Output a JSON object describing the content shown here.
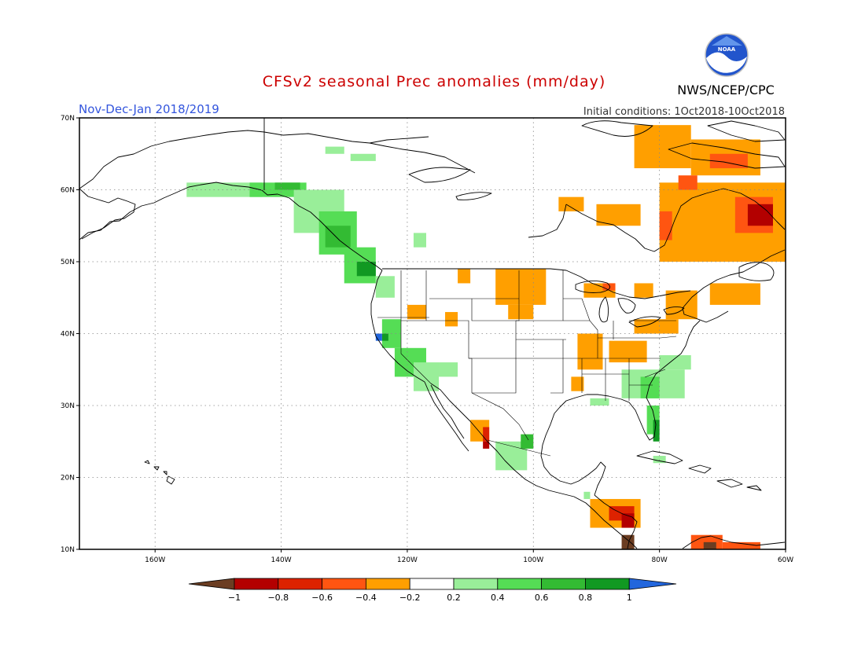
{
  "header": {
    "title": "CFSv2 seasonal Prec anomalies (mm/day)",
    "season": "Nov-Dec-Jan 2018/2019",
    "initial_conditions": "Initial conditions: 1Oct2018-10Oct2018",
    "agency": "NWS/NCEP/CPC",
    "logo_text": "NOAA"
  },
  "colors": {
    "title": "#cc0000",
    "season": "#3355dd",
    "neg_1": "#6b3d22",
    "neg_08": "#b30000",
    "neg_06": "#dd2200",
    "neg_04": "#ff5511",
    "neg_02": "#ff9f00",
    "pos_02": "#99ee99",
    "pos_04": "#55dd55",
    "pos_06": "#33bb33",
    "pos_08": "#119922",
    "pos_1": "#2266dd"
  },
  "map": {
    "lon_range": [
      -172,
      -60
    ],
    "lat_range": [
      10,
      70
    ],
    "lon_ticks": [
      {
        "value": -160,
        "label": "160W"
      },
      {
        "value": -140,
        "label": "140W"
      },
      {
        "value": -120,
        "label": "120W"
      },
      {
        "value": -100,
        "label": "100W"
      },
      {
        "value": -80,
        "label": "80W"
      },
      {
        "value": -60,
        "label": "60W"
      }
    ],
    "lat_ticks": [
      {
        "value": 10,
        "label": "10N"
      },
      {
        "value": 20,
        "label": "20N"
      },
      {
        "value": 30,
        "label": "30N"
      },
      {
        "value": 40,
        "label": "40N"
      },
      {
        "value": 50,
        "label": "50N"
      },
      {
        "value": 60,
        "label": "60N"
      },
      {
        "value": 70,
        "label": "70N"
      }
    ],
    "grid": true,
    "cell_deg": 1,
    "anomaly_patches": [
      {
        "lon": [
          -84,
          -75
        ],
        "lat": [
          63,
          69
        ],
        "class": "neg_02"
      },
      {
        "lon": [
          -75,
          -64
        ],
        "lat": [
          62,
          67
        ],
        "class": "neg_02"
      },
      {
        "lon": [
          -72,
          -66
        ],
        "lat": [
          63,
          65
        ],
        "class": "neg_04"
      },
      {
        "lon": [
          -80,
          -60
        ],
        "lat": [
          50,
          61
        ],
        "class": "neg_02"
      },
      {
        "lon": [
          -68,
          -62
        ],
        "lat": [
          54,
          59
        ],
        "class": "neg_04"
      },
      {
        "lon": [
          -66,
          -62
        ],
        "lat": [
          55,
          58
        ],
        "class": "neg_08"
      },
      {
        "lon": [
          -77,
          -74
        ],
        "lat": [
          60,
          62
        ],
        "class": "neg_04"
      },
      {
        "lon": [
          -80,
          -78
        ],
        "lat": [
          53,
          57
        ],
        "class": "neg_04"
      },
      {
        "lon": [
          -90,
          -83
        ],
        "lat": [
          55,
          58
        ],
        "class": "neg_02"
      },
      {
        "lon": [
          -96,
          -92
        ],
        "lat": [
          57,
          59
        ],
        "class": "neg_02"
      },
      {
        "lon": [
          -106,
          -98
        ],
        "lat": [
          44,
          49
        ],
        "class": "neg_02"
      },
      {
        "lon": [
          -104,
          -100
        ],
        "lat": [
          42,
          44
        ],
        "class": "neg_02"
      },
      {
        "lon": [
          -112,
          -110
        ],
        "lat": [
          47,
          49
        ],
        "class": "neg_02"
      },
      {
        "lon": [
          -120,
          -117
        ],
        "lat": [
          42,
          44
        ],
        "class": "neg_02"
      },
      {
        "lon": [
          -114,
          -112
        ],
        "lat": [
          41,
          43
        ],
        "class": "neg_02"
      },
      {
        "lon": [
          -92,
          -87
        ],
        "lat": [
          45,
          47
        ],
        "class": "neg_02"
      },
      {
        "lon": [
          -89,
          -87
        ],
        "lat": [
          46,
          47
        ],
        "class": "neg_04"
      },
      {
        "lon": [
          -84,
          -81
        ],
        "lat": [
          45,
          47
        ],
        "class": "neg_02"
      },
      {
        "lon": [
          -84,
          -77
        ],
        "lat": [
          40,
          42
        ],
        "class": "neg_02"
      },
      {
        "lon": [
          -88,
          -82
        ],
        "lat": [
          36,
          39
        ],
        "class": "neg_02"
      },
      {
        "lon": [
          -93,
          -89
        ],
        "lat": [
          35,
          40
        ],
        "class": "neg_02"
      },
      {
        "lon": [
          -94,
          -92
        ],
        "lat": [
          32,
          34
        ],
        "class": "neg_02"
      },
      {
        "lon": [
          -79,
          -74
        ],
        "lat": [
          42,
          46
        ],
        "class": "neg_02"
      },
      {
        "lon": [
          -72,
          -64
        ],
        "lat": [
          44,
          47
        ],
        "class": "neg_02"
      },
      {
        "lon": [
          -110,
          -107
        ],
        "lat": [
          25,
          28
        ],
        "class": "neg_02"
      },
      {
        "lon": [
          -108,
          -107
        ],
        "lat": [
          25,
          27
        ],
        "class": "neg_06"
      },
      {
        "lon": [
          -108,
          -107
        ],
        "lat": [
          24,
          25
        ],
        "class": "neg_08"
      },
      {
        "lon": [
          -91,
          -83
        ],
        "lat": [
          13,
          17
        ],
        "class": "neg_02"
      },
      {
        "lon": [
          -88,
          -84
        ],
        "lat": [
          14,
          16
        ],
        "class": "neg_06"
      },
      {
        "lon": [
          -86,
          -84
        ],
        "lat": [
          13,
          15
        ],
        "class": "neg_08"
      },
      {
        "lon": [
          -86,
          -84
        ],
        "lat": [
          10,
          12
        ],
        "class": "neg_1"
      },
      {
        "lon": [
          -75,
          -70
        ],
        "lat": [
          10,
          12
        ],
        "class": "neg_04"
      },
      {
        "lon": [
          -73,
          -71
        ],
        "lat": [
          10,
          11
        ],
        "class": "neg_1"
      },
      {
        "lon": [
          -70,
          -64
        ],
        "lat": [
          10,
          11
        ],
        "class": "neg_04"
      },
      {
        "lon": [
          -155,
          -143
        ],
        "lat": [
          59,
          61
        ],
        "class": "pos_02"
      },
      {
        "lon": [
          -145,
          -136
        ],
        "lat": [
          59,
          61
        ],
        "class": "pos_04"
      },
      {
        "lon": [
          -141,
          -137
        ],
        "lat": [
          60,
          61
        ],
        "class": "pos_06"
      },
      {
        "lon": [
          -138,
          -130
        ],
        "lat": [
          54,
          60
        ],
        "class": "pos_02"
      },
      {
        "lon": [
          -134,
          -128
        ],
        "lat": [
          51,
          57
        ],
        "class": "pos_04"
      },
      {
        "lon": [
          -133,
          -129
        ],
        "lat": [
          52,
          55
        ],
        "class": "pos_06"
      },
      {
        "lon": [
          -130,
          -125
        ],
        "lat": [
          47,
          52
        ],
        "class": "pos_04"
      },
      {
        "lon": [
          -128,
          -125
        ],
        "lat": [
          48,
          50
        ],
        "class": "pos_08"
      },
      {
        "lon": [
          -125,
          -122
        ],
        "lat": [
          45,
          48
        ],
        "class": "pos_02"
      },
      {
        "lon": [
          -133,
          -130
        ],
        "lat": [
          65,
          66
        ],
        "class": "pos_02"
      },
      {
        "lon": [
          -129,
          -125
        ],
        "lat": [
          64,
          65
        ],
        "class": "pos_02"
      },
      {
        "lon": [
          -119,
          -117
        ],
        "lat": [
          52,
          54
        ],
        "class": "pos_02"
      },
      {
        "lon": [
          -124,
          -121
        ],
        "lat": [
          38,
          42
        ],
        "class": "pos_04"
      },
      {
        "lon": [
          -124,
          -123
        ],
        "lat": [
          39,
          40
        ],
        "class": "pos_08"
      },
      {
        "lon": [
          -125,
          -124
        ],
        "lat": [
          39,
          40
        ],
        "class": "pos_1"
      },
      {
        "lon": [
          -122,
          -117
        ],
        "lat": [
          34,
          38
        ],
        "class": "pos_04"
      },
      {
        "lon": [
          -119,
          -115
        ],
        "lat": [
          32,
          36
        ],
        "class": "pos_02"
      },
      {
        "lon": [
          -115,
          -112
        ],
        "lat": [
          34,
          36
        ],
        "class": "pos_02"
      },
      {
        "lon": [
          -106,
          -101
        ],
        "lat": [
          21,
          25
        ],
        "class": "pos_02"
      },
      {
        "lon": [
          -102,
          -100
        ],
        "lat": [
          24,
          26
        ],
        "class": "pos_06"
      },
      {
        "lon": [
          -86,
          -76
        ],
        "lat": [
          31,
          35
        ],
        "class": "pos_02"
      },
      {
        "lon": [
          -80,
          -75
        ],
        "lat": [
          35,
          37
        ],
        "class": "pos_02"
      },
      {
        "lon": [
          -83,
          -80
        ],
        "lat": [
          31,
          34
        ],
        "class": "pos_04"
      },
      {
        "lon": [
          -82,
          -80
        ],
        "lat": [
          26,
          30
        ],
        "class": "pos_04"
      },
      {
        "lon": [
          -81,
          -80
        ],
        "lat": [
          25,
          28
        ],
        "class": "pos_08"
      },
      {
        "lon": [
          -91,
          -88
        ],
        "lat": [
          30,
          31
        ],
        "class": "pos_02"
      },
      {
        "lon": [
          -81,
          -79
        ],
        "lat": [
          22,
          23
        ],
        "class": "pos_02"
      },
      {
        "lon": [
          -92,
          -91
        ],
        "lat": [
          17,
          18
        ],
        "class": "pos_02"
      }
    ]
  },
  "colorbar": {
    "labels": [
      "-1",
      "-0.8",
      "-0.6",
      "-0.4",
      "-0.2",
      "0.2",
      "0.4",
      "0.6",
      "0.8",
      "1"
    ],
    "bins": [
      "neg_08",
      "neg_06",
      "neg_04",
      "neg_02",
      "neutral",
      "pos_02",
      "pos_04",
      "pos_06",
      "pos_08"
    ],
    "low_end": "neg_1",
    "high_end": "pos_1"
  }
}
